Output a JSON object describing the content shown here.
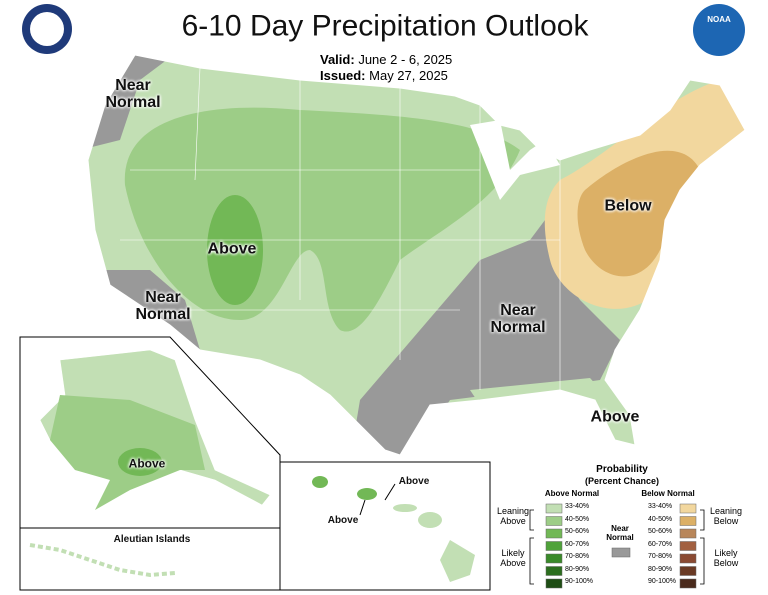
{
  "header": {
    "title": "6-10 Day Precipitation Outlook",
    "valid_label": "Valid:",
    "valid": "June 2 - 6, 2025",
    "issued_label": "Issued:",
    "issued": "May 27, 2025",
    "noaa": "NOAA"
  },
  "map_labels": [
    "Near Normal",
    "Above",
    "Near Normal",
    "Below",
    "Near Normal",
    "Above"
  ],
  "alaska": {
    "label": "Above",
    "aleutian": "Aleutian Islands"
  },
  "hawaii": {
    "labels": [
      "Above",
      "Above"
    ]
  },
  "legend": {
    "title": "Probability",
    "subtitle": "(Percent Chance)",
    "above_heading": "Above Normal",
    "below_heading": "Below Normal",
    "bins": [
      "33-40%",
      "40-50%",
      "50-60%",
      "60-70%",
      "70-80%",
      "80-90%",
      "90-100%"
    ],
    "above_colors": [
      "#c2dfb4",
      "#9dcd87",
      "#72b856",
      "#4fa23a",
      "#3a8a2a",
      "#2c6e1f",
      "#1e4d14"
    ],
    "below_colors": [
      "#f2d79e",
      "#dcb066",
      "#b8865a",
      "#a26040",
      "#8a4a32",
      "#6a3a24",
      "#4a2a1c"
    ],
    "near_label": "Near Normal",
    "near_color": "#999999",
    "leaning_above": "Leaning Above",
    "likely_above": "Likely Above",
    "leaning_below": "Leaning Below",
    "likely_below": "Likely Below"
  }
}
